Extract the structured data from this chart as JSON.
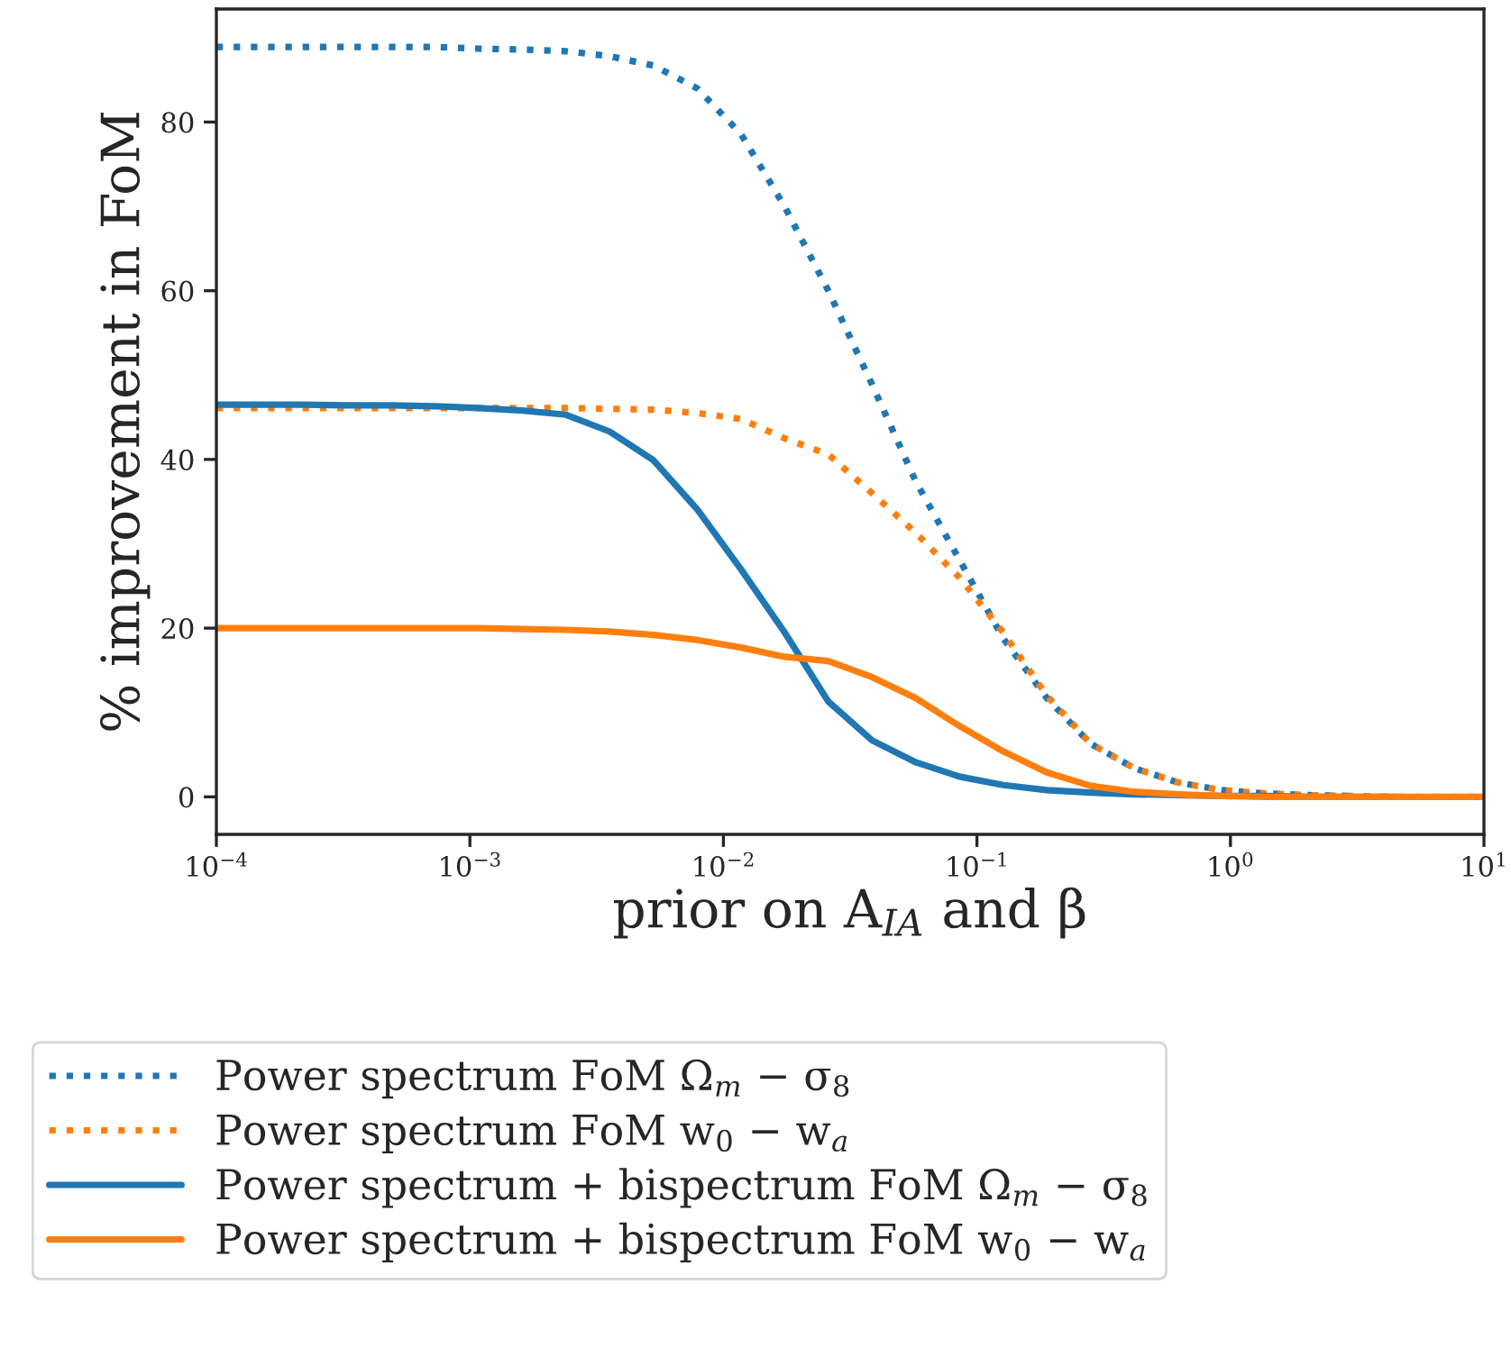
{
  "chart_data": {
    "type": "line",
    "xlabel": "prior on A$_{IA}$ and β",
    "ylabel": "% improvement in FoM",
    "x": [
      0.0001,
      0.0001487,
      0.0002212,
      0.000329,
      0.0004894,
      0.0007279,
      0.001083,
      0.00161,
      0.002395,
      0.003562,
      0.005298,
      0.00788,
      0.01172,
      0.01743,
      0.02593,
      0.03857,
      0.05736,
      0.08532,
      0.1269,
      0.1887,
      0.2807,
      0.4175,
      0.621,
      0.9237,
      1.374,
      2.043,
      3.039,
      4.52,
      6.723,
      10
    ],
    "series": [
      {
        "name": "Power spectrum FoM Ω$_{m}$ − σ$_{8}$",
        "color": "#1f77b4",
        "line_style": "dotted",
        "values": [
          88.9,
          88.9,
          88.9,
          88.9,
          88.9,
          88.9,
          88.7,
          88.6,
          88.4,
          87.8,
          86.7,
          84.0,
          78.6,
          70.0,
          60.0,
          48.9,
          37.4,
          28.1,
          18.8,
          11.7,
          6.3,
          3.4,
          1.7,
          0.8,
          0.4,
          0.2,
          0.1,
          null,
          null,
          null
        ]
      },
      {
        "name": "Power spectrum FoM w$_{0}$ − w$_{a}$",
        "color": "#ff7f0e",
        "line_style": "dotted",
        "values": [
          46.1,
          46.1,
          46.1,
          46.1,
          46.1,
          46.1,
          46.1,
          46.1,
          46.1,
          46.0,
          45.9,
          45.5,
          44.8,
          42.5,
          40.6,
          36.0,
          31.3,
          26.0,
          19.5,
          12.0,
          6.3,
          3.4,
          1.7,
          0.8,
          0.4,
          0.2,
          0.1,
          0,
          0,
          0
        ]
      },
      {
        "name": "Power spectrum + bispectrum FoM Ω$_{m}$ − σ$_{8}$",
        "color": "#1f77b4",
        "line_style": "solid",
        "values": [
          46.5,
          46.5,
          46.5,
          46.4,
          46.4,
          46.3,
          46.1,
          45.8,
          45.3,
          43.3,
          39.9,
          34.1,
          27.0,
          19.5,
          11.3,
          6.7,
          4.1,
          2.4,
          1.4,
          0.8,
          0.5,
          0.3,
          0.2,
          0.1,
          0.1,
          0,
          0,
          0,
          null,
          null
        ]
      },
      {
        "name": "Power spectrum + bispectrum FoM w$_{0}$ − w$_{a}$",
        "color": "#ff7f0e",
        "line_style": "solid",
        "values": [
          20.0,
          20.0,
          20.0,
          20.0,
          20.0,
          20.0,
          20.0,
          19.9,
          19.8,
          19.6,
          19.2,
          18.6,
          17.7,
          16.6,
          16.1,
          14.2,
          11.7,
          8.4,
          5.4,
          2.9,
          1.3,
          0.6,
          0.3,
          0.1,
          0,
          0,
          0,
          0,
          0,
          0
        ]
      }
    ],
    "log": "x",
    "xlim": [
      0.0001,
      10
    ],
    "xticks": [
      {
        "value": 0.0001,
        "label": "10$^{−4}$"
      },
      {
        "value": 0.001,
        "label": "10$^{−3}$"
      },
      {
        "value": 0.01,
        "label": "10$^{−2}$"
      },
      {
        "value": 0.1,
        "label": "10$^{−1}$"
      },
      {
        "value": 1,
        "label": "10$^{0}$"
      },
      {
        "value": 10,
        "label": "10$^{1}$"
      }
    ],
    "ylim": [
      -4.45,
      93.4
    ],
    "yticks": [
      0,
      20,
      40,
      60,
      80
    ],
    "grid": false,
    "legend": "bottom"
  }
}
